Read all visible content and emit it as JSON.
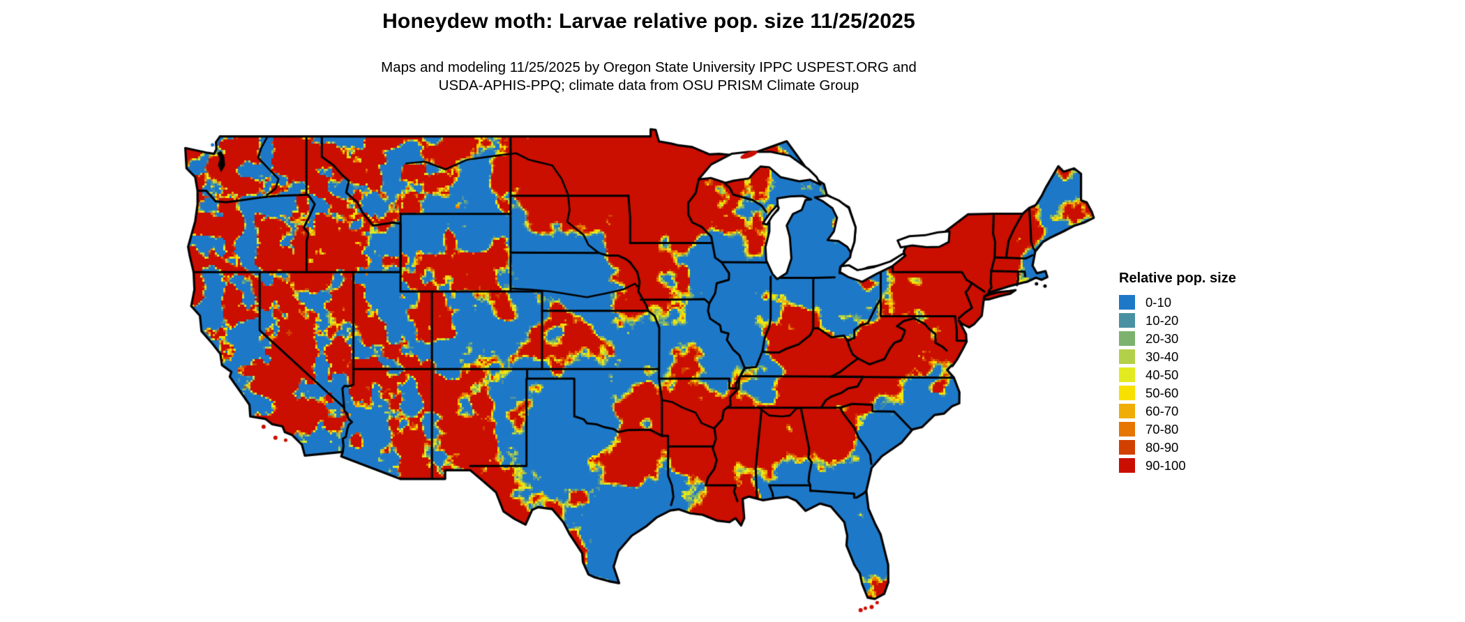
{
  "header": {
    "title": "Honeydew moth: Larvae relative pop. size 11/25/2025",
    "subtitle_line1": "Maps and modeling 11/25/2025 by Oregon State University IPPC USPEST.ORG and",
    "subtitle_line2": "USDA-APHIS-PPQ; climate data from OSU PRISM Climate Group"
  },
  "legend": {
    "title": "Relative pop. size",
    "items": [
      {
        "label": "0-10",
        "color": "#1e78c8"
      },
      {
        "label": "10-20",
        "color": "#4991a2"
      },
      {
        "label": "20-30",
        "color": "#7db26e"
      },
      {
        "label": "30-40",
        "color": "#b3d04a"
      },
      {
        "label": "40-50",
        "color": "#e3ea20"
      },
      {
        "label": "50-60",
        "color": "#f8e000"
      },
      {
        "label": "60-70",
        "color": "#f0ad08"
      },
      {
        "label": "70-80",
        "color": "#e67504"
      },
      {
        "label": "80-90",
        "color": "#d24000"
      },
      {
        "label": "90-100",
        "color": "#ca0e00"
      }
    ]
  },
  "map": {
    "type": "choropleth-raster",
    "region": "contiguous-united-states",
    "border_color": "#000000",
    "water_color": "#ffffff",
    "dominant_classes": [
      "90-100",
      "0-10"
    ]
  }
}
